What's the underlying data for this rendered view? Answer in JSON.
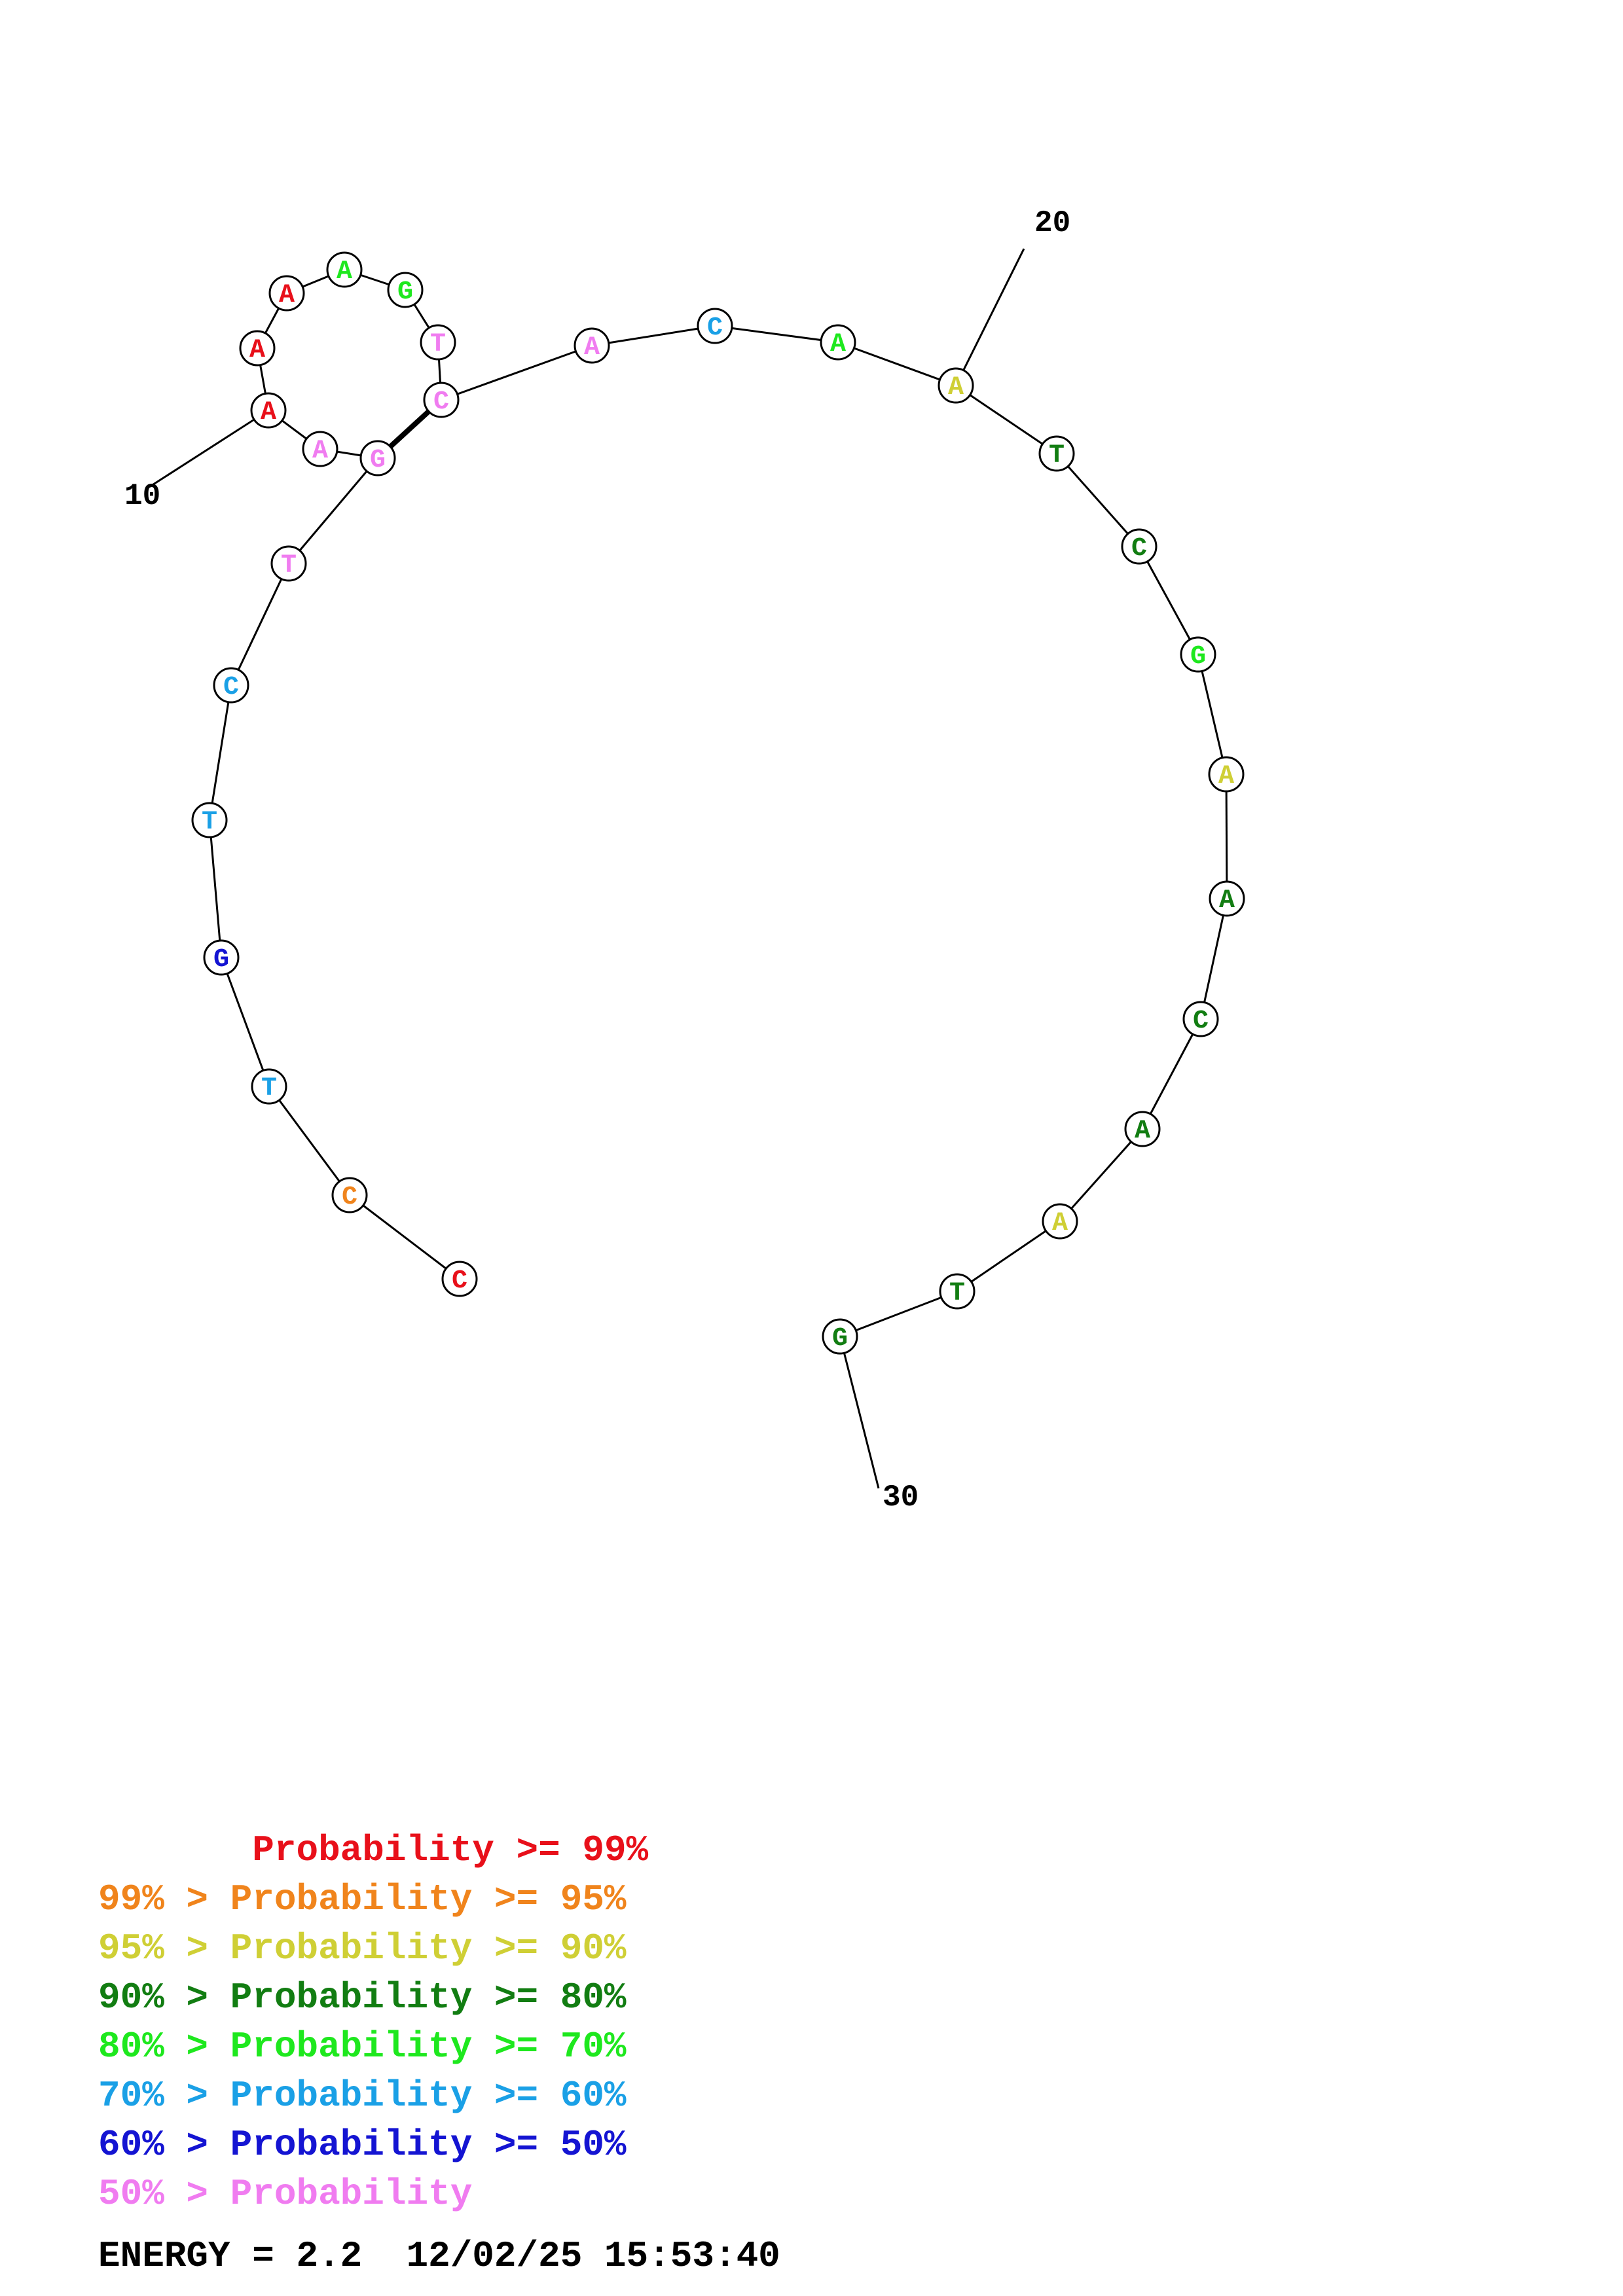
{
  "colors": {
    "p99": "#e8101a",
    "p95": "#f0841c",
    "p90": "#cfcf35",
    "p80": "#127d12",
    "p70": "#1ee81e",
    "p60": "#1aa0e6",
    "p50": "#1414d2",
    "plow": "#f07cf0"
  },
  "nucleotides": [
    {
      "letter": "A",
      "color": "p99"
    },
    {
      "letter": "A",
      "color": "p99"
    },
    {
      "letter": "A",
      "color": "p99"
    },
    {
      "letter": "A",
      "color": "p70"
    },
    {
      "letter": "G",
      "color": "p70"
    },
    {
      "letter": "T",
      "color": "plow"
    },
    {
      "letter": "C",
      "color": "plow"
    },
    {
      "letter": "A",
      "color": "plow"
    },
    {
      "letter": "C",
      "color": "p60"
    },
    {
      "letter": "A",
      "color": "p70"
    },
    {
      "letter": "A",
      "color": "p90"
    },
    {
      "letter": "T",
      "color": "p80"
    },
    {
      "letter": "C",
      "color": "p80"
    },
    {
      "letter": "G",
      "color": "p70"
    },
    {
      "letter": "A",
      "color": "p90"
    },
    {
      "letter": "A",
      "color": "p80"
    },
    {
      "letter": "C",
      "color": "p80"
    },
    {
      "letter": "A",
      "color": "p80"
    },
    {
      "letter": "A",
      "color": "p90"
    },
    {
      "letter": "T",
      "color": "p80"
    },
    {
      "letter": "G",
      "color": "p80"
    },
    {
      "letter": "C",
      "color": "p99"
    },
    {
      "letter": "C",
      "color": "p95"
    },
    {
      "letter": "T",
      "color": "p60"
    },
    {
      "letter": "G",
      "color": "p50"
    },
    {
      "letter": "T",
      "color": "p60"
    },
    {
      "letter": "C",
      "color": "p60"
    },
    {
      "letter": "T",
      "color": "plow"
    },
    {
      "letter": "G",
      "color": "plow"
    },
    {
      "letter": "A",
      "color": "plow"
    }
  ],
  "base_pair": [
    6,
    28
  ],
  "position_ticks": [
    {
      "label": "10",
      "node": 0
    },
    {
      "label": "20",
      "node": 10
    },
    {
      "label": "30",
      "node": 20
    }
  ],
  "legend": [
    {
      "prefix": "       ",
      "prefix_color": "p99",
      "text": "Probability >= 99%",
      "color": "p99"
    },
    {
      "prefix": "99% > ",
      "prefix_color": "p95",
      "text": "Probability >= 95%",
      "color": "p95"
    },
    {
      "prefix": "95% > ",
      "prefix_color": "p90",
      "text": "Probability >= 90%",
      "color": "p90"
    },
    {
      "prefix": "90% > ",
      "prefix_color": "p80",
      "text": "Probability >= 80%",
      "color": "p80"
    },
    {
      "prefix": "80% > ",
      "prefix_color": "p70",
      "text": "Probability >= 70%",
      "color": "p70"
    },
    {
      "prefix": "70% > ",
      "prefix_color": "p60",
      "text": "Probability >= 60%",
      "color": "p60"
    },
    {
      "prefix": "60% > ",
      "prefix_color": "p50",
      "text": "Probability >= 50%",
      "color": "p50"
    },
    {
      "prefix": "50% > ",
      "prefix_color": "plow",
      "text": "Probability",
      "color": "plow"
    }
  ],
  "energy": {
    "label": "ENERGY = 2.2",
    "timestamp": "12/02/25 15:53:40"
  }
}
